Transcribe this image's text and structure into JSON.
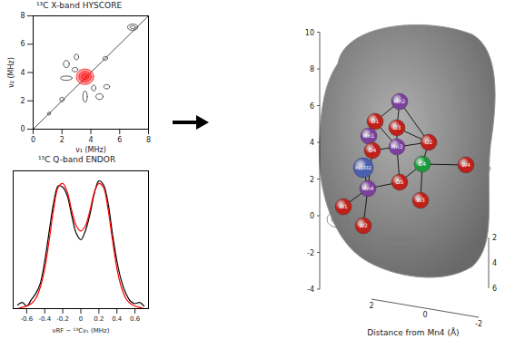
{
  "chart_data": [
    {
      "type": "contour",
      "title": "¹³C X-band HYSCORE",
      "xlabel": "ν₁ (MHz)",
      "ylabel": "ν₂ (MHz)",
      "xlim": [
        0,
        8
      ],
      "ylim": [
        0,
        8
      ],
      "xticks": [
        0,
        2,
        4,
        6,
        8
      ],
      "yticks": [
        0,
        2,
        4,
        6,
        8
      ],
      "contours": [
        {
          "x": 3.6,
          "y": 3.7,
          "rx": 0.6,
          "ry": 0.55,
          "color": "red"
        },
        {
          "x": 3.6,
          "y": 3.7,
          "rx": 0.42,
          "ry": 0.38,
          "color": "red"
        },
        {
          "x": 3.6,
          "y": 3.7,
          "rx": 0.25,
          "ry": 0.22,
          "color": "red"
        },
        {
          "x": 6.9,
          "y": 7.2,
          "rx": 0.35,
          "ry": 0.22,
          "color": "black"
        },
        {
          "x": 6.9,
          "y": 7.2,
          "rx": 0.18,
          "ry": 0.1,
          "color": "black"
        },
        {
          "x": 2.0,
          "y": 2.1,
          "rx": 0.15,
          "ry": 0.15,
          "color": "black"
        },
        {
          "x": 5.0,
          "y": 5.0,
          "rx": 0.16,
          "ry": 0.13,
          "color": "black"
        },
        {
          "x": 1.1,
          "y": 1.1,
          "rx": 0.1,
          "ry": 0.1,
          "color": "black"
        },
        {
          "x": 2.3,
          "y": 4.6,
          "rx": 0.2,
          "ry": 0.25,
          "color": "black"
        },
        {
          "x": 4.6,
          "y": 2.3,
          "rx": 0.25,
          "ry": 0.2,
          "color": "black"
        },
        {
          "x": 2.9,
          "y": 4.2,
          "rx": 0.2,
          "ry": 0.15,
          "color": "black"
        },
        {
          "x": 4.2,
          "y": 2.9,
          "rx": 0.15,
          "ry": 0.2,
          "color": "black"
        },
        {
          "x": 3.0,
          "y": 5.1,
          "rx": 0.15,
          "ry": 0.2,
          "color": "black"
        },
        {
          "x": 5.1,
          "y": 3.0,
          "rx": 0.2,
          "ry": 0.15,
          "color": "black"
        },
        {
          "x": 3.6,
          "y": 2.3,
          "rx": 0.15,
          "ry": 0.4,
          "color": "black"
        },
        {
          "x": 2.3,
          "y": 3.6,
          "rx": 0.4,
          "ry": 0.15,
          "color": "black"
        }
      ]
    },
    {
      "type": "line",
      "title": "¹³C Q-band ENDOR",
      "xlabel": "νRF − ¹³Cν₁ (MHz)",
      "tick_labels": "x",
      "xlim": [
        -0.75,
        0.75
      ],
      "ylim": [
        0,
        1.1
      ],
      "xticks": [
        -0.6,
        -0.4,
        -0.2,
        0,
        0.2,
        0.4,
        0.6
      ],
      "x": [
        -0.7,
        -0.65,
        -0.6,
        -0.55,
        -0.5,
        -0.45,
        -0.4,
        -0.35,
        -0.3,
        -0.25,
        -0.2,
        -0.15,
        -0.1,
        -0.05,
        0,
        0.05,
        0.1,
        0.15,
        0.2,
        0.25,
        0.3,
        0.35,
        0.4,
        0.45,
        0.5,
        0.55,
        0.6,
        0.65,
        0.7
      ],
      "series": [
        {
          "color": "black",
          "values": [
            0.03,
            0.05,
            0.02,
            0.07,
            0.12,
            0.2,
            0.38,
            0.62,
            0.85,
            0.98,
            0.97,
            0.9,
            0.74,
            0.6,
            0.55,
            0.62,
            0.75,
            0.92,
            1.02,
            0.99,
            0.85,
            0.6,
            0.38,
            0.22,
            0.12,
            0.06,
            0.04,
            0.05,
            0.02
          ]
        },
        {
          "color": "red",
          "values": [
            0.0,
            0.01,
            0.02,
            0.04,
            0.08,
            0.17,
            0.32,
            0.55,
            0.8,
            0.97,
            1.0,
            0.93,
            0.78,
            0.66,
            0.62,
            0.66,
            0.78,
            0.93,
            1.0,
            0.97,
            0.8,
            0.55,
            0.32,
            0.17,
            0.08,
            0.04,
            0.02,
            0.01,
            0.0
          ]
        }
      ]
    }
  ],
  "diagram": {
    "axis_label": "Distance from Mn4 (Å)",
    "z_ticks": [
      -4,
      -2,
      0,
      2,
      4,
      6,
      8,
      10
    ],
    "x_ticks": [
      2,
      0,
      -2
    ],
    "depth_ticks": [
      2,
      4,
      6
    ],
    "atoms": [
      {
        "label": "Mn2",
        "color": "#7b3f9e"
      },
      {
        "label": "O1",
        "color": "#c0201a"
      },
      {
        "label": "O3",
        "color": "#c0201a"
      },
      {
        "label": "Mn1",
        "color": "#7b3f9e"
      },
      {
        "label": "Mn3",
        "color": "#7b3f9e"
      },
      {
        "label": "O4",
        "color": "#c0201a"
      },
      {
        "label": "O2",
        "color": "#c0201a"
      },
      {
        "label": "HIS332",
        "color": "#4a5fae"
      },
      {
        "label": "C4",
        "color": "#1a9a3a"
      },
      {
        "label": "O5",
        "color": "#c0201a"
      },
      {
        "label": "Mn4",
        "color": "#7b3f9e"
      },
      {
        "label": "W4",
        "color": "#c0201a"
      },
      {
        "label": "W1",
        "color": "#c0201a"
      },
      {
        "label": "W2",
        "color": "#c0201a"
      },
      {
        "label": "W3",
        "color": "#c0201a"
      }
    ]
  }
}
